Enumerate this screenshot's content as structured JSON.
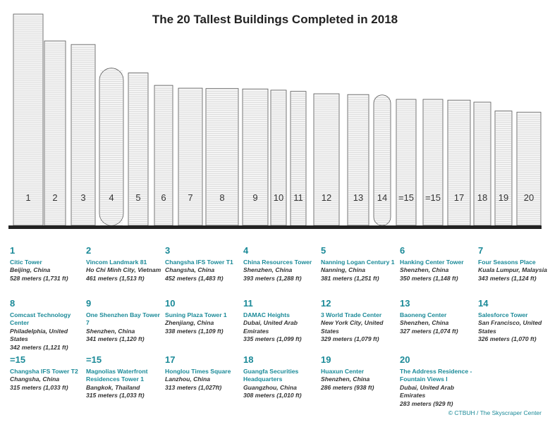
{
  "title": "The 20 Tallest Buildings Completed in 2018",
  "accent_color": "#1b8a98",
  "buildings": [
    {
      "rank": "1",
      "name": "Citic Tower",
      "location": "Beijing, China",
      "height": "528 meters (1,731 ft)",
      "meters": 528
    },
    {
      "rank": "2",
      "name": "Vincom Landmark 81",
      "location": "Ho Chi Minh City, Vietnam",
      "height": "461 meters (1,513 ft)",
      "meters": 461
    },
    {
      "rank": "3",
      "name": "Changsha IFS Tower T1",
      "location": "Changsha, China",
      "height": "452 meters (1,483 ft)",
      "meters": 452
    },
    {
      "rank": "4",
      "name": "China Resources Tower",
      "location": "Shenzhen, China",
      "height": "393 meters (1,288 ft)",
      "meters": 393
    },
    {
      "rank": "5",
      "name": "Nanning Logan Century 1",
      "location": "Nanning, China",
      "height": "381 meters (1,251 ft)",
      "meters": 381
    },
    {
      "rank": "6",
      "name": "Hanking Center Tower",
      "location": "Shenzhen, China",
      "height": "350 meters (1,148 ft)",
      "meters": 350
    },
    {
      "rank": "7",
      "name": "Four Seasons Place",
      "location": "Kuala Lumpur, Malaysia",
      "height": "343 meters (1,124 ft)",
      "meters": 343
    },
    {
      "rank": "8",
      "name": "Comcast Technology Center",
      "location": "Philadelphia, United States",
      "height": "342 meters (1,121 ft)",
      "meters": 342
    },
    {
      "rank": "9",
      "name": "One Shenzhen Bay Tower 7",
      "location": "Shenzhen, China",
      "height": "341 meters (1,120 ft)",
      "meters": 341
    },
    {
      "rank": "10",
      "name": "Suning Plaza Tower 1",
      "location": "Zhenjiang, China",
      "height": "338 meters (1,109 ft)",
      "meters": 338
    },
    {
      "rank": "11",
      "name": "DAMAC Heights",
      "location": "Dubai, United Arab Emirates",
      "height": "335 meters (1,099 ft)",
      "meters": 335
    },
    {
      "rank": "12",
      "name": "3 World Trade Center",
      "location": "New York City, United States",
      "height": "329 meters (1,079 ft)",
      "meters": 329
    },
    {
      "rank": "13",
      "name": "Baoneng Center",
      "location": "Shenzhen, China",
      "height": "327 meters (1,074 ft)",
      "meters": 327
    },
    {
      "rank": "14",
      "name": "Salesforce Tower",
      "location": "San Francisco, United States",
      "height": "326 meters (1,070 ft)",
      "meters": 326
    },
    {
      "rank": "=15",
      "name": "Changsha IFS Tower T2",
      "location": "Changsha, China",
      "height": "315 meters (1,033 ft)",
      "meters": 315
    },
    {
      "rank": "=15",
      "name": "Magnolias Waterfront Residences Tower 1",
      "location": "Bangkok, Thailand",
      "height": "315 meters (1,033 ft)",
      "meters": 315
    },
    {
      "rank": "17",
      "name": "Honglou Times Square",
      "location": "Lanzhou, China",
      "height": "313 meters (1,027ft)",
      "meters": 313
    },
    {
      "rank": "18",
      "name": "Guangfa Securities Headquarters",
      "location": "Guangzhou, China",
      "height": "308 meters (1,010 ft)",
      "meters": 308
    },
    {
      "rank": "19",
      "name": "Huaxun Center",
      "location": "Shenzhen, China",
      "height": "286 meters (938 ft)",
      "meters": 286
    },
    {
      "rank": "20",
      "name": "The Address Residence - Fountain Views I",
      "location": "Dubai, United Arab Emirates",
      "height": "283 meters (929 ft)",
      "meters": 283
    }
  ],
  "credit": "© CTBUH / The Skyscraper Center"
}
